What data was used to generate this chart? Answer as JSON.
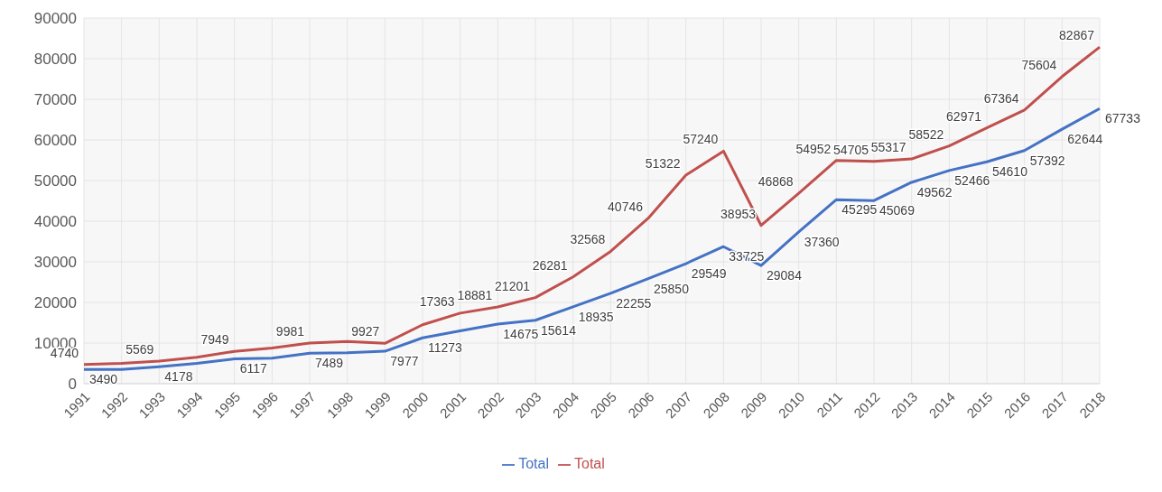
{
  "chart_data": {
    "type": "line",
    "categories": [
      "1991",
      "1992",
      "1993",
      "1994",
      "1995",
      "1996",
      "1997",
      "1998",
      "1999",
      "2000",
      "2001",
      "2002",
      "2003",
      "2004",
      "2005",
      "2006",
      "2007",
      "2008",
      "2009",
      "2010",
      "2011",
      "2012",
      "2013",
      "2014",
      "2015",
      "2016",
      "2017",
      "2018"
    ],
    "series": [
      {
        "name": "Total",
        "color": "#4472c4",
        "values": [
          3490,
          3500,
          4178,
          5000,
          6117,
          6300,
          7489,
          7600,
          7977,
          11273,
          13000,
          14675,
          15614,
          18935,
          22255,
          25850,
          29549,
          33725,
          29084,
          37360,
          45295,
          45069,
          49562,
          52466,
          54610,
          57392,
          62644,
          67733
        ],
        "value_labels": [
          "3490",
          null,
          "4178",
          null,
          "6117",
          null,
          "7489",
          null,
          "7977",
          "11273",
          null,
          "14675",
          "15614",
          "18935",
          "22255",
          "25850",
          "29549",
          "33725",
          "29084",
          "37360",
          "45295",
          "45069",
          "49562",
          "52466",
          "54610",
          "57392",
          "62644",
          "67733"
        ]
      },
      {
        "name": "Total",
        "color": "#c0504d",
        "values": [
          4740,
          5000,
          5569,
          6500,
          7949,
          8800,
          9981,
          10400,
          9927,
          14500,
          17363,
          18881,
          21201,
          26281,
          32568,
          40746,
          51322,
          57240,
          38953,
          46868,
          54952,
          54705,
          55317,
          58522,
          62971,
          67364,
          75604,
          82867
        ],
        "value_labels": [
          "4740",
          null,
          "5569",
          null,
          "7949",
          null,
          "9981",
          null,
          "9927",
          null,
          "17363",
          "18881",
          "21201",
          "26281",
          "32568",
          "40746",
          "51322",
          "57240",
          "38953",
          "46868",
          "54952",
          "54705",
          "55317",
          "58522",
          "62971",
          "67364",
          "75604",
          "82867"
        ]
      }
    ],
    "ylim": [
      0,
      90000
    ],
    "yticks": [
      0,
      10000,
      20000,
      30000,
      40000,
      50000,
      60000,
      70000,
      80000,
      90000
    ],
    "grid": true,
    "legend": "bottom",
    "marker": "none",
    "line_style": "solid"
  }
}
